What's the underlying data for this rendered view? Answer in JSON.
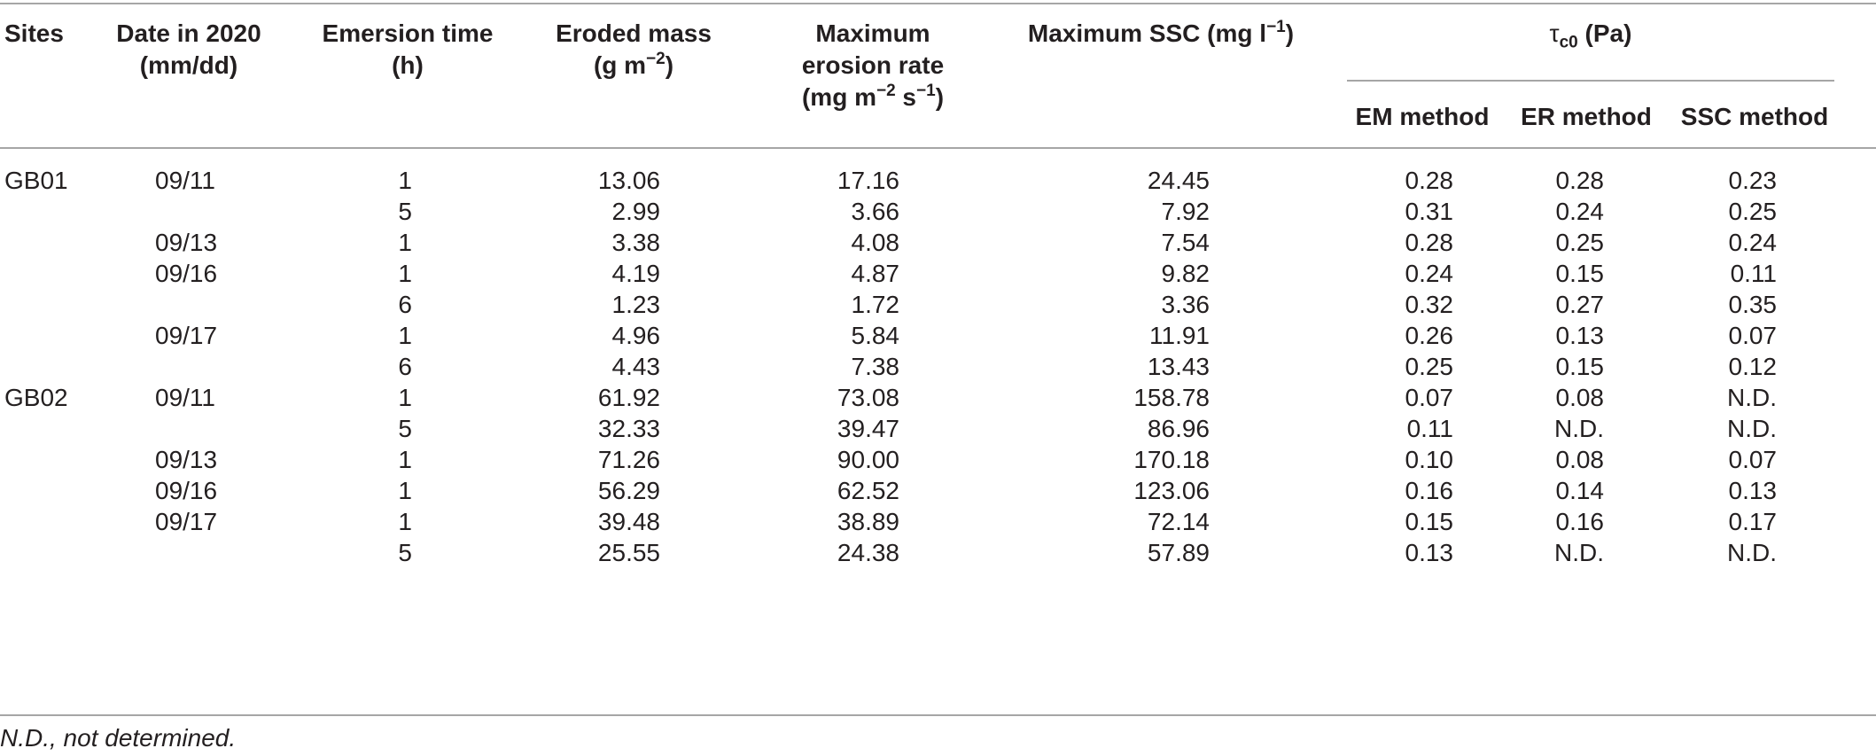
{
  "headers": {
    "sites": "Sites",
    "date_line1": "Date in 2020",
    "date_line2": "(mm/dd)",
    "emersion_line1": "Emersion time",
    "emersion_line2": "(h)",
    "eroded_line1": "Eroded mass",
    "eroded_line2_pre": "(g m",
    "eroded_line2_sup": "−2",
    "eroded_line2_post": ")",
    "rate_line1": "Maximum",
    "rate_line2": "erosion rate",
    "rate_line3_a": "(mg m",
    "rate_line3_sup1": "−2",
    "rate_line3_b": " s",
    "rate_line3_sup2": "−1",
    "rate_line3_c": ")",
    "ssc_pre": "Maximum SSC (mg l",
    "ssc_sup": "−1",
    "ssc_post": ")",
    "tau_symbol": "τ",
    "tau_sub": "c0",
    "tau_unit": " (Pa)",
    "em_method": "EM method",
    "er_method": "ER method",
    "ssc_method": "SSC method"
  },
  "rows": [
    {
      "site": "GB01",
      "date": "09/11",
      "emersion": "1",
      "eroded": "13.06",
      "rate": "17.16",
      "ssc": "24.45",
      "em": "0.28",
      "er": "0.28",
      "sscm": "0.23"
    },
    {
      "site": "",
      "date": "",
      "emersion": "5",
      "eroded": "2.99",
      "rate": "3.66",
      "ssc": "7.92",
      "em": "0.31",
      "er": "0.24",
      "sscm": "0.25"
    },
    {
      "site": "",
      "date": "09/13",
      "emersion": "1",
      "eroded": "3.38",
      "rate": "4.08",
      "ssc": "7.54",
      "em": "0.28",
      "er": "0.25",
      "sscm": "0.24"
    },
    {
      "site": "",
      "date": "09/16",
      "emersion": "1",
      "eroded": "4.19",
      "rate": "4.87",
      "ssc": "9.82",
      "em": "0.24",
      "er": "0.15",
      "sscm": "0.11"
    },
    {
      "site": "",
      "date": "",
      "emersion": "6",
      "eroded": "1.23",
      "rate": "1.72",
      "ssc": "3.36",
      "em": "0.32",
      "er": "0.27",
      "sscm": "0.35"
    },
    {
      "site": "",
      "date": "09/17",
      "emersion": "1",
      "eroded": "4.96",
      "rate": "5.84",
      "ssc": "11.91",
      "em": "0.26",
      "er": "0.13",
      "sscm": "0.07"
    },
    {
      "site": "",
      "date": "",
      "emersion": "6",
      "eroded": "4.43",
      "rate": "7.38",
      "ssc": "13.43",
      "em": "0.25",
      "er": "0.15",
      "sscm": "0.12"
    },
    {
      "site": "GB02",
      "date": "09/11",
      "emersion": "1",
      "eroded": "61.92",
      "rate": "73.08",
      "ssc": "158.78",
      "em": "0.07",
      "er": "0.08",
      "sscm": "N.D."
    },
    {
      "site": "",
      "date": "",
      "emersion": "5",
      "eroded": "32.33",
      "rate": "39.47",
      "ssc": "86.96",
      "em": "0.11",
      "er": "N.D.",
      "sscm": "N.D."
    },
    {
      "site": "",
      "date": "09/13",
      "emersion": "1",
      "eroded": "71.26",
      "rate": "90.00",
      "ssc": "170.18",
      "em": "0.10",
      "er": "0.08",
      "sscm": "0.07"
    },
    {
      "site": "",
      "date": "09/16",
      "emersion": "1",
      "eroded": "56.29",
      "rate": "62.52",
      "ssc": "123.06",
      "em": "0.16",
      "er": "0.14",
      "sscm": "0.13"
    },
    {
      "site": "",
      "date": "09/17",
      "emersion": "1",
      "eroded": "39.48",
      "rate": "38.89",
      "ssc": "72.14",
      "em": "0.15",
      "er": "0.16",
      "sscm": "0.17"
    },
    {
      "site": "",
      "date": "",
      "emersion": "5",
      "eroded": "25.55",
      "rate": "24.38",
      "ssc": "57.89",
      "em": "0.13",
      "er": "N.D.",
      "sscm": "N.D."
    }
  ],
  "footnote": "N.D., not determined."
}
